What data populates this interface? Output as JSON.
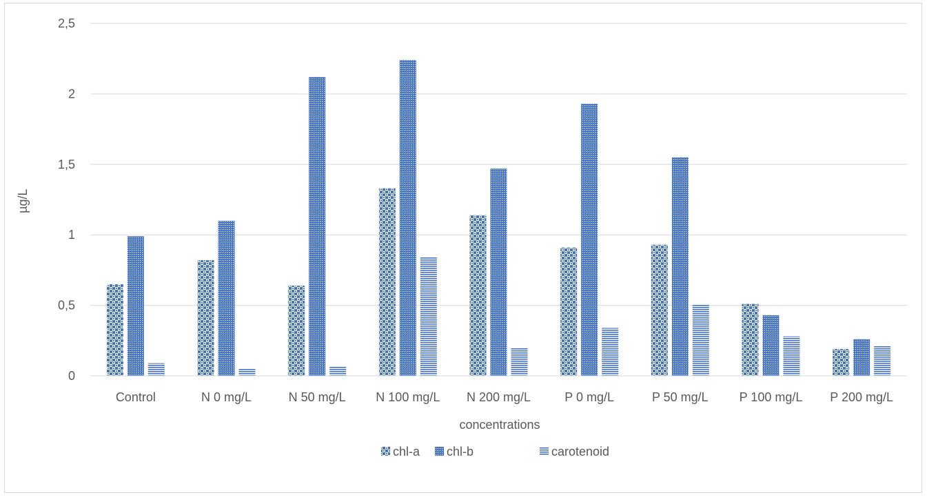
{
  "chart_data": {
    "type": "bar",
    "title": "",
    "xlabel": "concentrations",
    "ylabel": "µg/L",
    "categories": [
      "Control",
      "N 0 mg/L",
      "N 50 mg/L",
      "N 100 mg/L",
      "N 200 mg/L",
      "P 0 mg/L",
      "P 50 mg/L",
      "P 100 mg/L",
      "P 200 mg/L"
    ],
    "series": [
      {
        "name": "chl-a",
        "values": [
          0.65,
          0.82,
          0.64,
          1.33,
          1.14,
          0.91,
          0.93,
          0.51,
          0.19
        ]
      },
      {
        "name": "chl-b",
        "values": [
          0.99,
          1.1,
          2.12,
          2.24,
          1.47,
          1.93,
          1.55,
          0.43,
          0.26
        ]
      },
      {
        "name": "carotenoid",
        "values": [
          0.09,
          0.05,
          0.07,
          0.84,
          0.2,
          0.34,
          0.51,
          0.28,
          0.21
        ]
      }
    ],
    "ylim": [
      0,
      2.5
    ],
    "yticks": [
      0,
      0.5,
      1,
      1.5,
      2,
      2.5
    ],
    "ytick_labels": [
      "0",
      "0,5",
      "1",
      "1,5",
      "2",
      "2,5"
    ],
    "grid": true,
    "legend_position": "bottom",
    "colors": {
      "bar": "#4472c4",
      "grid": "#d9d9d9",
      "text": "#595959"
    }
  }
}
